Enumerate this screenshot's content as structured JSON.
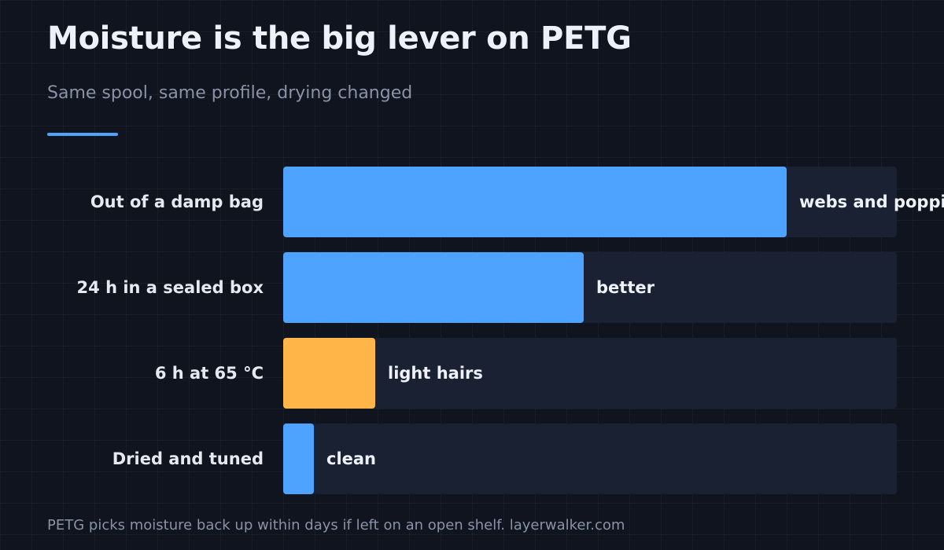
{
  "title": "Moisture is the big lever on PETG",
  "subtitle": "Same spool, same profile, drying changed",
  "footnote": "PETG picks moisture back up within days if left on an open shelf. layerwalker.com",
  "colors": {
    "accent": "#4da3ff",
    "highlight": "#ffb547"
  },
  "chart_data": {
    "type": "bar",
    "orientation": "horizontal",
    "categories": [
      "Out of a damp bag",
      "24 h in a sealed box",
      "6 h at 65 °C",
      "Dried and tuned"
    ],
    "values": [
      82,
      49,
      15,
      5
    ],
    "xlim": [
      0,
      100
    ],
    "labels": [
      "webs and popping",
      "better",
      "light hairs",
      "clean"
    ],
    "bar_colors": [
      "#4da3ff",
      "#4da3ff",
      "#ffb547",
      "#4da3ff"
    ],
    "grid": false,
    "legend": "none"
  }
}
